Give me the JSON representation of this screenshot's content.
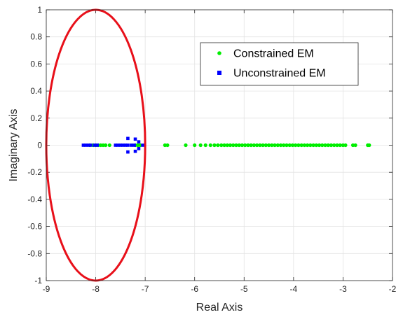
{
  "chart_data": {
    "type": "scatter",
    "xlabel": "Real Axis",
    "ylabel": "Imaginary Axis",
    "xlim": [
      -9,
      -2
    ],
    "ylim": [
      -1,
      1
    ],
    "x_ticks": [
      "-9",
      "-8",
      "-7",
      "-6",
      "-5",
      "-4",
      "-3",
      "-2"
    ],
    "y_ticks": [
      "-1",
      "-0.8",
      "-0.6",
      "-0.4",
      "-0.2",
      "0",
      "0.2",
      "0.4",
      "0.6",
      "0.8",
      "1"
    ],
    "grid": true,
    "legend": "top-right",
    "series": [
      {
        "name": "Constrained EM",
        "marker": "circle",
        "color": "#00ee00",
        "points": [
          [
            -8.12,
            0
          ],
          [
            -8.05,
            0
          ],
          [
            -8.0,
            0
          ],
          [
            -7.95,
            0
          ],
          [
            -7.9,
            0
          ],
          [
            -7.85,
            0
          ],
          [
            -7.8,
            0
          ],
          [
            -7.72,
            0
          ],
          [
            -7.2,
            0
          ],
          [
            -7.15,
            0
          ],
          [
            -7.1,
            0
          ],
          [
            -6.6,
            0
          ],
          [
            -6.55,
            0
          ],
          [
            -6.18,
            0
          ],
          [
            -6.0,
            0
          ],
          [
            -5.88,
            0
          ],
          [
            -5.78,
            0
          ],
          [
            -5.68,
            0
          ],
          [
            -5.6,
            0
          ],
          [
            -5.53,
            0
          ],
          [
            -5.46,
            0
          ],
          [
            -5.4,
            0
          ],
          [
            -5.34,
            0
          ],
          [
            -5.28,
            0
          ],
          [
            -5.22,
            0
          ],
          [
            -5.16,
            0
          ],
          [
            -5.1,
            0
          ],
          [
            -5.04,
            0
          ],
          [
            -4.98,
            0
          ],
          [
            -4.92,
            0
          ],
          [
            -4.86,
            0
          ],
          [
            -4.8,
            0
          ],
          [
            -4.74,
            0
          ],
          [
            -4.68,
            0
          ],
          [
            -4.62,
            0
          ],
          [
            -4.56,
            0
          ],
          [
            -4.5,
            0
          ],
          [
            -4.44,
            0
          ],
          [
            -4.38,
            0
          ],
          [
            -4.32,
            0
          ],
          [
            -4.26,
            0
          ],
          [
            -4.2,
            0
          ],
          [
            -4.14,
            0
          ],
          [
            -4.08,
            0
          ],
          [
            -4.02,
            0
          ],
          [
            -3.96,
            0
          ],
          [
            -3.9,
            0
          ],
          [
            -3.84,
            0
          ],
          [
            -3.78,
            0
          ],
          [
            -3.72,
            0
          ],
          [
            -3.66,
            0
          ],
          [
            -3.6,
            0
          ],
          [
            -3.54,
            0
          ],
          [
            -3.48,
            0
          ],
          [
            -3.42,
            0
          ],
          [
            -3.36,
            0
          ],
          [
            -3.3,
            0
          ],
          [
            -3.24,
            0
          ],
          [
            -3.18,
            0
          ],
          [
            -3.12,
            0
          ],
          [
            -3.06,
            0
          ],
          [
            -3.0,
            0
          ],
          [
            -2.95,
            0
          ],
          [
            -2.8,
            0
          ],
          [
            -2.75,
            0
          ],
          [
            -2.5,
            0
          ],
          [
            -2.47,
            0
          ]
        ]
      },
      {
        "name": "Unconstrained EM",
        "marker": "square",
        "color": "#0000ff",
        "points": [
          [
            -8.25,
            0
          ],
          [
            -8.2,
            0
          ],
          [
            -8.15,
            0
          ],
          [
            -8.1,
            0
          ],
          [
            -8.02,
            0
          ],
          [
            -7.97,
            0
          ],
          [
            -7.6,
            0
          ],
          [
            -7.55,
            0
          ],
          [
            -7.5,
            0
          ],
          [
            -7.45,
            0
          ],
          [
            -7.4,
            0
          ],
          [
            -7.35,
            0
          ],
          [
            -7.28,
            0
          ],
          [
            -7.22,
            0
          ],
          [
            -7.05,
            0
          ],
          [
            -7.35,
            0.05
          ],
          [
            -7.35,
            -0.05
          ],
          [
            -7.2,
            0.045
          ],
          [
            -7.2,
            -0.045
          ],
          [
            -7.13,
            0.025
          ],
          [
            -7.13,
            -0.025
          ]
        ]
      }
    ],
    "annotations": [
      {
        "type": "ellipse",
        "color": "#e8101a",
        "cx": -8.0,
        "cy": 0,
        "rx": 1.0,
        "ry": 1.0
      }
    ]
  }
}
